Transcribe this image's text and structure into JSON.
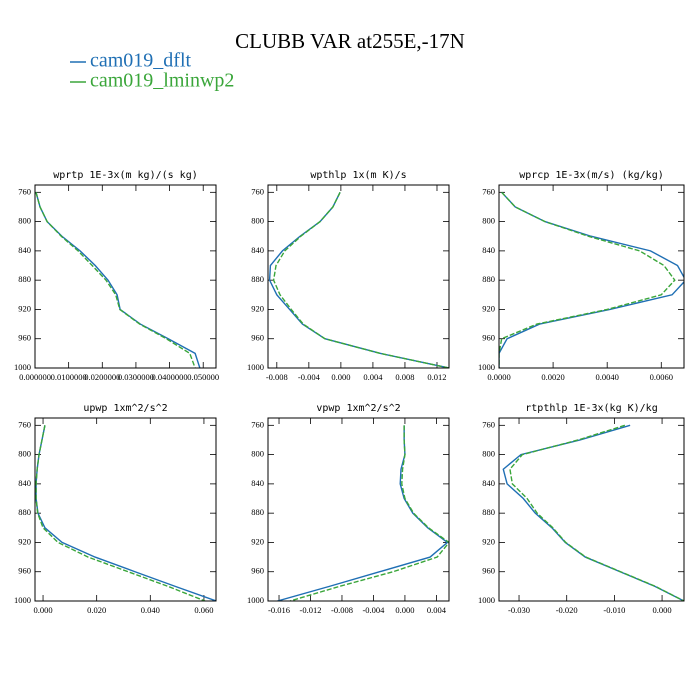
{
  "title": "CLUBB VAR at255E,-17N",
  "chart_data": [
    {
      "type": "line",
      "title": "wprtp  1E-3x(m kg)/(s kg)",
      "y": [
        760,
        780,
        800,
        820,
        840,
        860,
        880,
        900,
        920,
        940,
        960,
        980,
        1000
      ],
      "series": [
        {
          "name": "cam019_dflt",
          "color": "#1f6fb4",
          "dash": false,
          "values": [
            0.0003,
            0.0015,
            0.0036,
            0.008,
            0.0134,
            0.0179,
            0.0217,
            0.0244,
            0.0253,
            0.0313,
            0.0396,
            0.0476,
            0.049
          ]
        },
        {
          "name": "cam019_lminwp2",
          "color": "#3aa63a",
          "dash": true,
          "values": [
            0.0003,
            0.0015,
            0.0036,
            0.0078,
            0.0128,
            0.017,
            0.0211,
            0.024,
            0.0252,
            0.0311,
            0.039,
            0.046,
            0.0476
          ]
        }
      ],
      "xlim": [
        0,
        0.0538
      ],
      "xticks": [
        {
          "value": 0,
          "label": "0.000000"
        },
        {
          "value": 0.01,
          "label": "0.0100000"
        },
        {
          "value": 0.02,
          "label": "0.0200000"
        },
        {
          "value": 0.03,
          "label": "0.0300000"
        },
        {
          "value": 0.04,
          "label": "0.0400000"
        },
        {
          "value": 0.05,
          "label": "0.050000"
        }
      ],
      "ylim": [
        750,
        1000
      ],
      "yinvert": true,
      "yticks": [
        760,
        800,
        840,
        880,
        920,
        960,
        1000
      ]
    },
    {
      "type": "line",
      "title": "wpthlp  1x(m K)/s",
      "y": [
        760,
        780,
        800,
        820,
        840,
        860,
        880,
        900,
        920,
        940,
        960,
        980,
        1000
      ],
      "series": [
        {
          "name": "cam019_dflt",
          "color": "#1f6fb4",
          "dash": false,
          "values": [
            -0.0001,
            -0.001,
            -0.0026,
            -0.0051,
            -0.0073,
            -0.0088,
            -0.0089,
            -0.008,
            -0.0064,
            -0.0048,
            -0.002,
            0.0049,
            0.0135
          ]
        },
        {
          "name": "cam019_lminwp2",
          "color": "#3aa63a",
          "dash": true,
          "values": [
            -0.0001,
            -0.001,
            -0.0026,
            -0.005,
            -0.007,
            -0.0081,
            -0.0084,
            -0.0076,
            -0.0062,
            -0.0047,
            -0.002,
            0.0049,
            0.0135
          ]
        }
      ],
      "xlim": [
        -0.0091,
        0.0135
      ],
      "xticks": [
        -0.008,
        -0.004,
        {
          "value": 0,
          "label": "0.000"
        },
        0.004,
        0.008,
        0.012
      ],
      "ylim": [
        750,
        1000
      ],
      "yinvert": true,
      "yticks": [
        760,
        800,
        840,
        880,
        920,
        960,
        1000
      ]
    },
    {
      "type": "line",
      "title": "wprcp  1E-3x(m/s) (kg/kg)",
      "y": [
        760,
        780,
        800,
        820,
        840,
        860,
        880,
        900,
        920,
        940,
        960,
        980,
        1000
      ],
      "series": [
        {
          "name": "cam019_dflt",
          "color": "#1f6fb4",
          "dash": false,
          "values": [
            0.0001,
            0.0006,
            0.0017,
            0.0034,
            0.0056,
            0.0066,
            0.0069,
            0.0064,
            0.0041,
            0.0015,
            0.0003,
            0.0,
            0.0
          ]
        },
        {
          "name": "cam019_lminwp2",
          "color": "#3aa63a",
          "dash": true,
          "values": [
            0.0001,
            0.0006,
            0.0017,
            0.0033,
            0.0052,
            0.0061,
            0.0065,
            0.006,
            0.004,
            0.0014,
            0.0001,
            0.0,
            0.0
          ]
        }
      ],
      "xlim": [
        0,
        0.00684
      ],
      "xticks": [
        {
          "value": 0,
          "label": "0.0000"
        },
        {
          "value": 0.002,
          "label": "0.0020"
        },
        {
          "value": 0.004,
          "label": "0.0040"
        },
        {
          "value": 0.006,
          "label": "0.0060"
        }
      ],
      "ylim": [
        750,
        1000
      ],
      "yinvert": true,
      "yticks": [
        760,
        800,
        840,
        880,
        920,
        960,
        1000
      ]
    },
    {
      "type": "line",
      "title": "upwp  1xm^2/s^2",
      "y": [
        760,
        780,
        800,
        820,
        840,
        860,
        880,
        900,
        920,
        940,
        960,
        980,
        1000
      ],
      "series": [
        {
          "name": "cam019_dflt",
          "color": "#1f6fb4",
          "dash": false,
          "values": [
            0.0007,
            -0.0004,
            -0.0015,
            -0.0022,
            -0.0026,
            -0.0026,
            -0.0019,
            0.0007,
            0.0071,
            0.0194,
            0.0343,
            0.0493,
            0.0646
          ]
        },
        {
          "name": "cam019_lminwp2",
          "color": "#3aa63a",
          "dash": true,
          "values": [
            0.0007,
            -0.0004,
            -0.0015,
            -0.0022,
            -0.0026,
            -0.0026,
            -0.002,
            0.0,
            0.0056,
            0.0168,
            0.0317,
            0.0466,
            0.0604
          ]
        }
      ],
      "xlim": [
        -0.003,
        0.0645
      ],
      "xticks": [
        {
          "value": 0,
          "label": "0.000"
        },
        {
          "value": 0.02,
          "label": "0.020"
        },
        {
          "value": 0.04,
          "label": "0.040"
        },
        {
          "value": 0.06,
          "label": "0.060"
        }
      ],
      "ylim": [
        750,
        1000
      ],
      "yinvert": true,
      "yticks": [
        760,
        800,
        840,
        880,
        920,
        960,
        1000
      ]
    },
    {
      "type": "line",
      "title": "vpwp  1xm^2/s^2",
      "y": [
        760,
        780,
        800,
        820,
        840,
        860,
        880,
        900,
        920,
        940,
        960,
        980,
        1000
      ],
      "series": [
        {
          "name": "cam019_dflt",
          "color": "#1f6fb4",
          "dash": false,
          "values": [
            -0.0001,
            -0.0001,
            0.0,
            -0.0005,
            -0.0006,
            -0.0001,
            0.001,
            0.0029,
            0.0054,
            0.0032,
            -0.0032,
            -0.0096,
            -0.0162
          ]
        },
        {
          "name": "cam019_lminwp2",
          "color": "#3aa63a",
          "dash": true,
          "values": [
            -0.0001,
            -0.0001,
            0.0,
            -0.0003,
            -0.0004,
            0.0,
            0.0011,
            0.003,
            0.0056,
            0.0041,
            -0.0015,
            -0.0083,
            -0.0146
          ]
        }
      ],
      "xlim": [
        -0.0174,
        0.0056
      ],
      "xticks": [
        -0.016,
        -0.012,
        -0.008,
        -0.004,
        {
          "value": 0,
          "label": "0.000"
        },
        0.004
      ],
      "ylim": [
        750,
        1000
      ],
      "yinvert": true,
      "yticks": [
        760,
        800,
        840,
        880,
        920,
        960,
        1000
      ]
    },
    {
      "type": "line",
      "title": "rtpthlp  1E-3x(kg K)/kg",
      "y": [
        760,
        780,
        800,
        820,
        840,
        860,
        880,
        900,
        920,
        940,
        960,
        980,
        1000
      ],
      "series": [
        {
          "name": "cam019_dflt",
          "color": "#1f6fb4",
          "dash": false,
          "values": [
            -0.0067,
            -0.0172,
            -0.0296,
            -0.0333,
            -0.0325,
            -0.0291,
            -0.0266,
            -0.0231,
            -0.0203,
            -0.0161,
            -0.0088,
            -0.0015,
            0.0046
          ]
        },
        {
          "name": "cam019_lminwp2",
          "color": "#3aa63a",
          "dash": true,
          "values": [
            -0.0078,
            -0.0176,
            -0.0293,
            -0.0319,
            -0.0314,
            -0.0283,
            -0.0262,
            -0.0229,
            -0.0202,
            -0.016,
            -0.0087,
            -0.0014,
            0.0046
          ]
        }
      ],
      "xlim": [
        -0.0342,
        0.0046
      ],
      "xticks": [
        {
          "value": -0.03,
          "label": "-0.030"
        },
        {
          "value": -0.02,
          "label": "-0.020"
        },
        {
          "value": -0.01,
          "label": "-0.010"
        },
        {
          "value": 0,
          "label": "0.000"
        }
      ],
      "ylim": [
        750,
        1000
      ],
      "yinvert": true,
      "yticks": [
        760,
        800,
        840,
        880,
        920,
        960,
        1000
      ]
    }
  ]
}
